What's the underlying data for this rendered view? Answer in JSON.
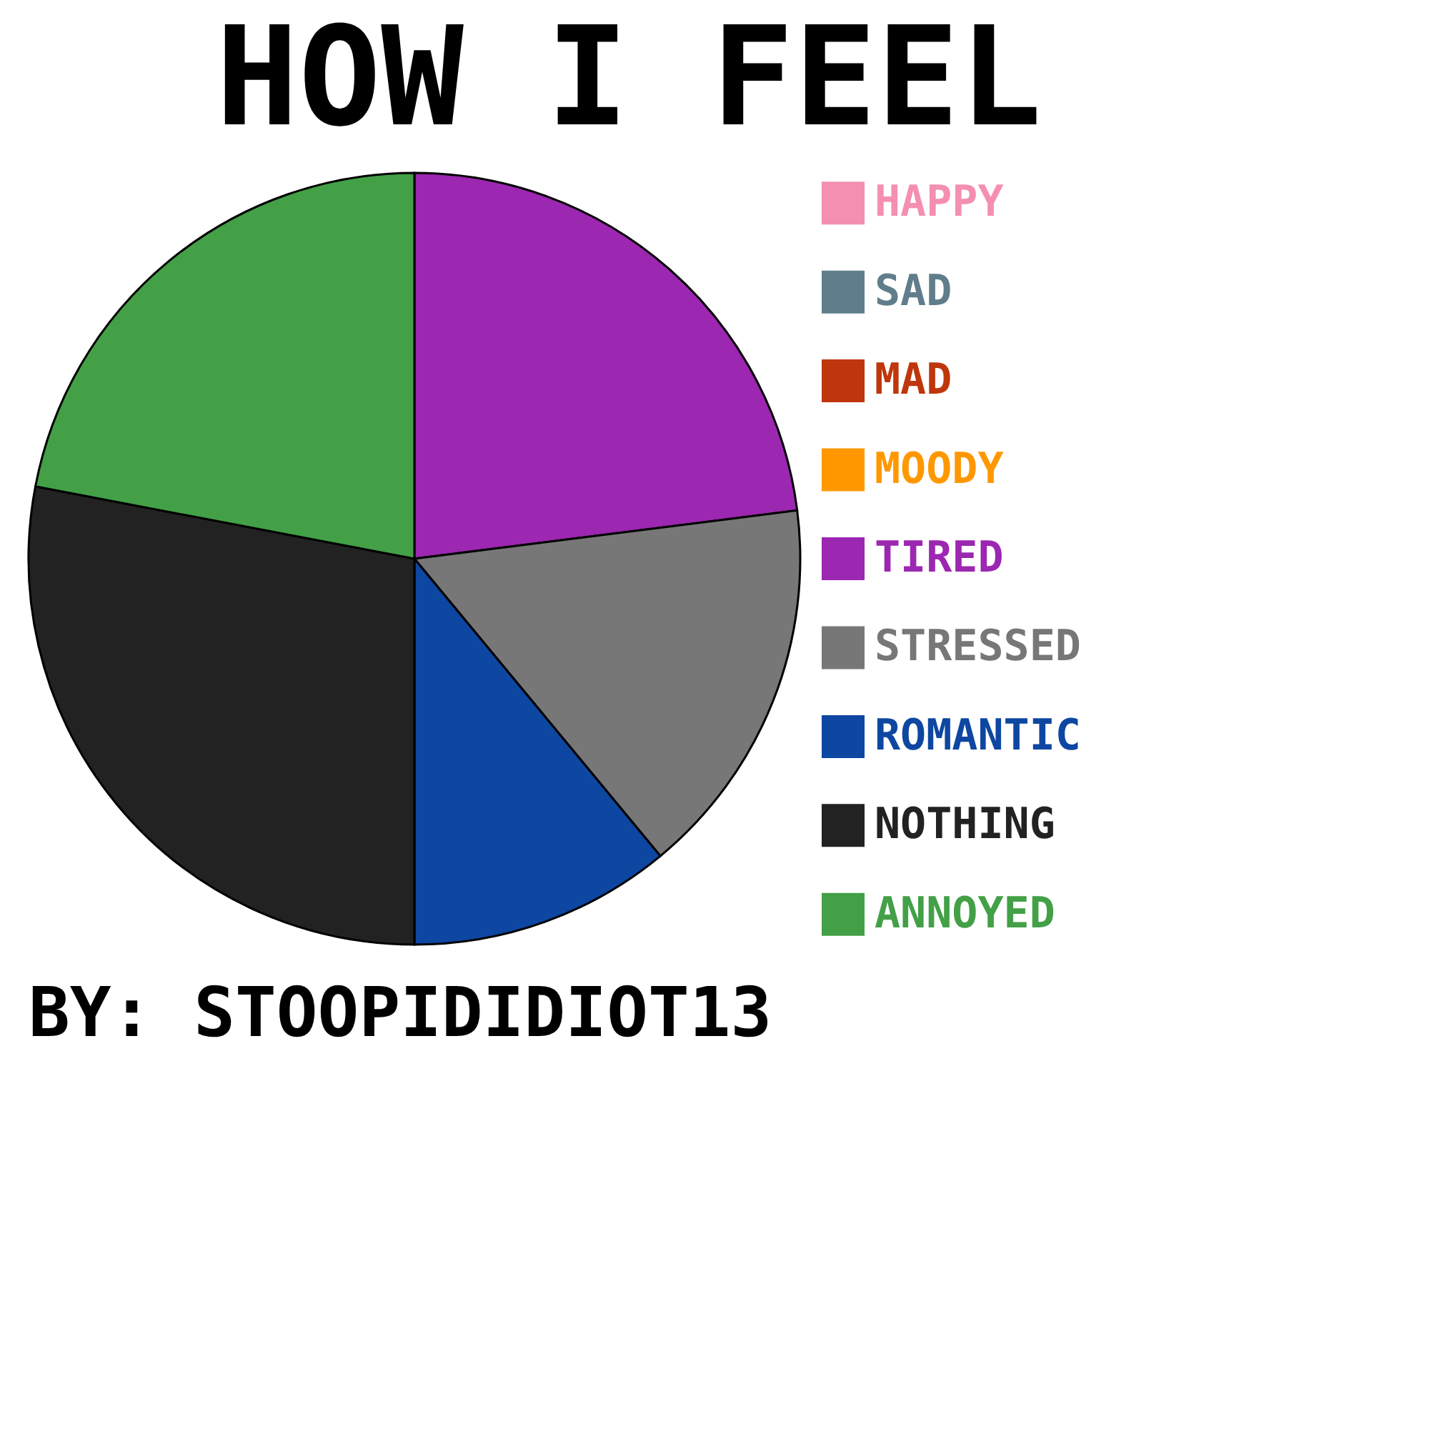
{
  "chart_data": {
    "type": "pie",
    "title": "HOW I FEEL",
    "annotations": [
      "BY: STOOPIDIDIOT13"
    ],
    "categories": [
      "HAPPY",
      "SAD",
      "MAD",
      "MOODY",
      "TIRED",
      "STRESSED",
      "ROMANTIC",
      "NOTHING",
      "ANNOYED"
    ],
    "values": [
      0,
      0,
      0,
      0,
      23,
      16,
      11,
      28,
      22
    ],
    "colors": [
      "#f48fb1",
      "#607d8b",
      "#bf360c",
      "#ff9800",
      "#9c27b0",
      "#777777",
      "#0d47a1",
      "#222222",
      "#43a047"
    ],
    "legend": "right"
  }
}
